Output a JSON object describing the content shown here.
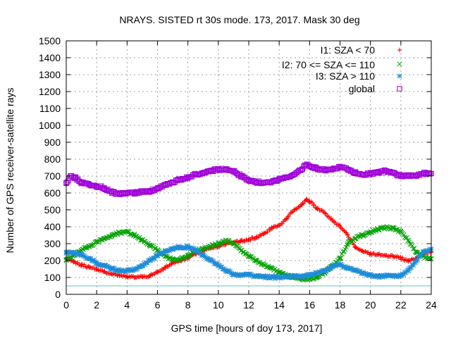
{
  "chart_data": {
    "type": "scatter",
    "title": "NRAYS. SISTED rt 30s mode. 173, 2017. Mask 30 deg",
    "xlabel": "GPS time [hours of doy 173, 2017]",
    "ylabel": "Number of GPS receiver-satellite rays",
    "xlim": [
      0,
      24
    ],
    "ylim": [
      0,
      1500
    ],
    "xticks": [
      0,
      2,
      4,
      6,
      8,
      10,
      12,
      14,
      16,
      18,
      20,
      22,
      24
    ],
    "yticks": [
      0,
      100,
      200,
      300,
      400,
      500,
      600,
      700,
      800,
      900,
      1000,
      1100,
      1200,
      1300,
      1400,
      1500
    ],
    "grid": true,
    "legend_position": "top-right",
    "threshold_line": {
      "y": 50,
      "color": "#5fc5c0"
    },
    "series": [
      {
        "name": "I1: SZA < 70",
        "marker": "plus",
        "color": "#ff0000",
        "x": [
          0,
          0.5,
          1,
          1.5,
          2,
          2.5,
          3,
          3.5,
          4,
          4.5,
          5,
          5.5,
          6,
          6.5,
          7,
          7.5,
          8,
          8.5,
          9,
          9.5,
          10,
          10.5,
          11,
          11.5,
          12,
          12.5,
          13,
          13.5,
          14,
          14.5,
          15,
          15.5,
          15.8,
          16,
          16.5,
          17,
          17.5,
          18,
          18.5,
          19,
          19.5,
          20,
          20.5,
          21,
          21.5,
          22,
          22.5,
          23,
          23.5,
          24
        ],
        "y": [
          215,
          195,
          175,
          160,
          150,
          135,
          120,
          110,
          105,
          100,
          105,
          110,
          130,
          160,
          185,
          200,
          215,
          240,
          260,
          275,
          285,
          300,
          305,
          315,
          325,
          335,
          360,
          390,
          410,
          450,
          500,
          530,
          560,
          550,
          510,
          480,
          440,
          400,
          350,
          280,
          255,
          240,
          235,
          230,
          225,
          215,
          195,
          215,
          240,
          250
        ]
      },
      {
        "name": "I2: 70 <= SZA <= 110",
        "marker": "cross",
        "color": "#00a000",
        "x": [
          0,
          0.5,
          1,
          1.5,
          2,
          2.5,
          3,
          3.5,
          4,
          4.5,
          5,
          5.5,
          6,
          6.5,
          7,
          7.5,
          8,
          8.5,
          9,
          9.5,
          10,
          10.5,
          11,
          11.5,
          12,
          12.5,
          13,
          13.5,
          14,
          14.5,
          15,
          15.5,
          16,
          16.5,
          17,
          17.5,
          18,
          18.5,
          19,
          19.5,
          20,
          20.5,
          21,
          21.5,
          22,
          22.5,
          23,
          23.5,
          24
        ],
        "y": [
          205,
          230,
          260,
          285,
          310,
          330,
          345,
          365,
          370,
          350,
          320,
          290,
          260,
          225,
          205,
          210,
          230,
          255,
          270,
          285,
          300,
          320,
          300,
          260,
          230,
          200,
          175,
          155,
          130,
          110,
          100,
          90,
          90,
          100,
          130,
          170,
          210,
          300,
          330,
          350,
          370,
          385,
          395,
          390,
          370,
          320,
          250,
          225,
          210
        ]
      },
      {
        "name": "I3: SZA > 110",
        "marker": "star",
        "color": "#1e8cd7",
        "x": [
          0,
          0.5,
          1,
          1.5,
          2,
          2.5,
          3,
          3.5,
          4,
          4.5,
          5,
          5.5,
          6,
          6.5,
          7,
          7.5,
          8,
          8.5,
          9,
          9.5,
          10,
          10.5,
          11,
          11.5,
          12,
          12.5,
          13,
          13.5,
          14,
          14.5,
          15,
          15.5,
          16,
          16.5,
          17,
          17.5,
          18,
          18.5,
          19,
          19.5,
          20,
          20.5,
          21,
          21.5,
          22,
          22.5,
          23,
          23.5,
          24
        ],
        "y": [
          250,
          245,
          230,
          210,
          185,
          170,
          150,
          140,
          140,
          150,
          170,
          200,
          230,
          255,
          270,
          280,
          280,
          260,
          230,
          200,
          170,
          140,
          120,
          115,
          115,
          110,
          105,
          100,
          100,
          105,
          110,
          110,
          115,
          125,
          140,
          165,
          175,
          155,
          140,
          125,
          115,
          105,
          110,
          110,
          110,
          140,
          200,
          250,
          265
        ]
      },
      {
        "name": "global",
        "marker": "square",
        "color": "#a000d8",
        "x": [
          0,
          0.3,
          0.6,
          1,
          1.5,
          2,
          2.5,
          3,
          3.5,
          4,
          4.5,
          5,
          5.5,
          6,
          6.5,
          7,
          7.5,
          8,
          8.5,
          9,
          9.5,
          10,
          10.5,
          11,
          11.5,
          12,
          12.5,
          13,
          13.5,
          14,
          14.5,
          15,
          15.5,
          15.8,
          16,
          16.5,
          17,
          17.5,
          18,
          18.5,
          19,
          19.5,
          20,
          20.5,
          21,
          21.5,
          22,
          22.5,
          23,
          23.5,
          24
        ],
        "y": [
          660,
          700,
          690,
          660,
          650,
          640,
          630,
          605,
          595,
          600,
          600,
          610,
          610,
          625,
          650,
          665,
          680,
          690,
          710,
          720,
          730,
          740,
          740,
          730,
          700,
          675,
          665,
          660,
          665,
          680,
          690,
          710,
          740,
          770,
          760,
          745,
          735,
          740,
          750,
          740,
          720,
          710,
          715,
          720,
          730,
          720,
          700,
          700,
          700,
          715,
          715
        ]
      }
    ]
  }
}
